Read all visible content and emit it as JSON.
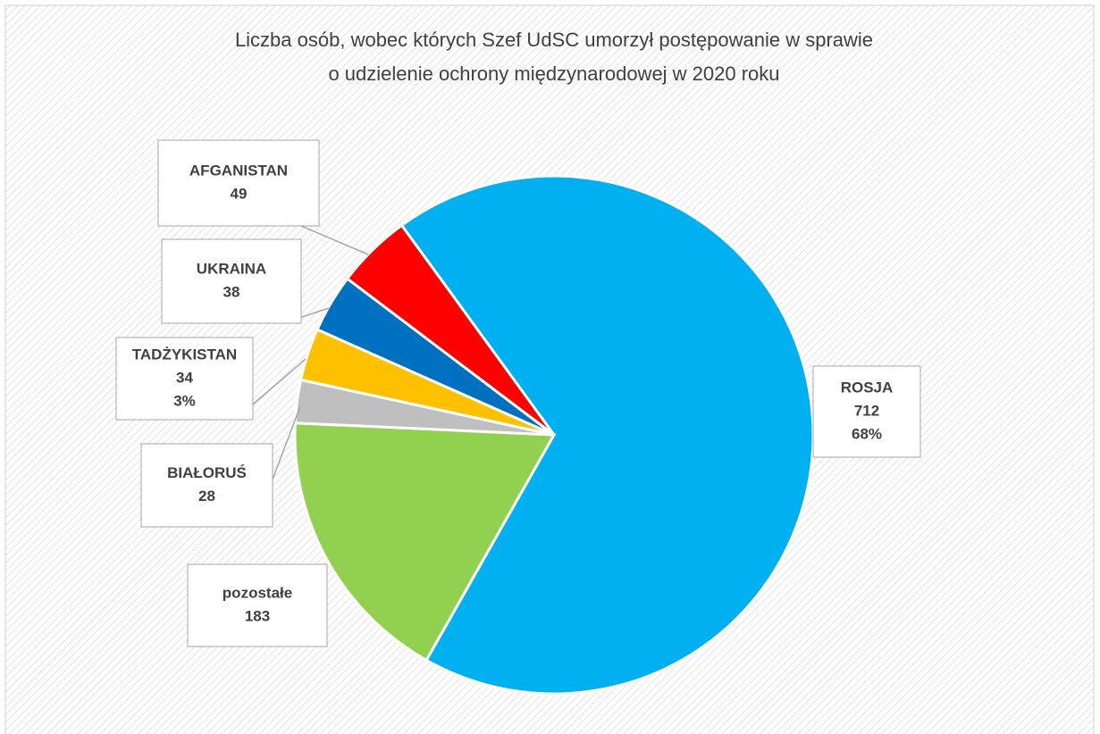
{
  "chart_data": {
    "type": "pie",
    "title": [
      "Liczba osób, wobec których Szef UdSC umorzył postępowanie w sprawie",
      "o udzielenie ochrony międzynarodowej w 2020 roku"
    ],
    "categories": [
      "ROSJA",
      "pozostałe",
      "BIAŁORUŚ",
      "TADŻYKISTAN",
      "UKRAINA",
      "AFGANISTAN"
    ],
    "values": [
      712,
      183,
      28,
      34,
      38,
      49
    ],
    "percent_labels": [
      "68%",
      null,
      null,
      "3%",
      null,
      null
    ],
    "colors": [
      "#00b0f0",
      "#92d050",
      "#bfbfbf",
      "#ffc000",
      "#0070c0",
      "#ff0000"
    ]
  }
}
